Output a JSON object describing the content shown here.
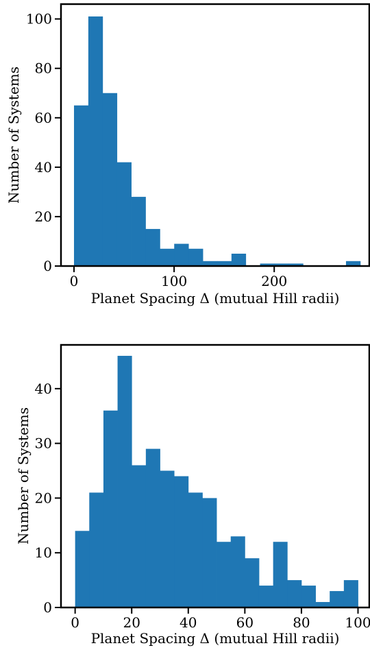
{
  "bar_color": "#1f77b4",
  "axis_color": "#000000",
  "chart_data": [
    {
      "type": "bar",
      "title": "",
      "xlabel": "Planet Spacing Δ (mutual Hill radii)",
      "ylabel": "Number of Systems",
      "xlim": [
        -13,
        295
      ],
      "ylim": [
        0,
        106
      ],
      "xticks": [
        0,
        100,
        200
      ],
      "yticks": [
        0,
        20,
        40,
        60,
        80,
        100
      ],
      "x_tick_labels": [
        "0",
        "100",
        "200"
      ],
      "y_tick_labels": [
        "0",
        "20",
        "40",
        "60",
        "80",
        "100"
      ],
      "bin_edges": [
        0,
        14.3,
        28.6,
        42.9,
        57.2,
        71.5,
        85.8,
        100.1,
        114.4,
        128.7,
        143.0,
        157.3,
        171.6,
        185.9,
        200.2,
        214.5,
        228.8,
        243.1,
        257.4,
        271.7,
        286.0
      ],
      "values": [
        65,
        101,
        70,
        42,
        28,
        15,
        7,
        9,
        7,
        2,
        2,
        5,
        0,
        1,
        1,
        1,
        0,
        0,
        0,
        2
      ]
    },
    {
      "type": "bar",
      "title": "",
      "xlabel": "Planet Spacing Δ (mutual Hill radii)",
      "ylabel": "Number of Systems",
      "xlim": [
        -5,
        104
      ],
      "ylim": [
        0,
        48
      ],
      "xticks": [
        0,
        20,
        40,
        60,
        80,
        100
      ],
      "yticks": [
        0,
        10,
        20,
        30,
        40
      ],
      "x_tick_labels": [
        "0",
        "20",
        "40",
        "60",
        "80",
        "100"
      ],
      "y_tick_labels": [
        "0",
        "10",
        "20",
        "30",
        "40"
      ],
      "bin_edges": [
        0,
        5,
        10,
        15,
        20,
        25,
        30,
        35,
        40,
        45,
        50,
        55,
        60,
        65,
        70,
        75,
        80,
        85,
        90,
        95,
        100
      ],
      "values": [
        14,
        21,
        36,
        46,
        26,
        29,
        25,
        24,
        21,
        20,
        12,
        13,
        9,
        4,
        12,
        5,
        4,
        1,
        3,
        5
      ]
    }
  ]
}
